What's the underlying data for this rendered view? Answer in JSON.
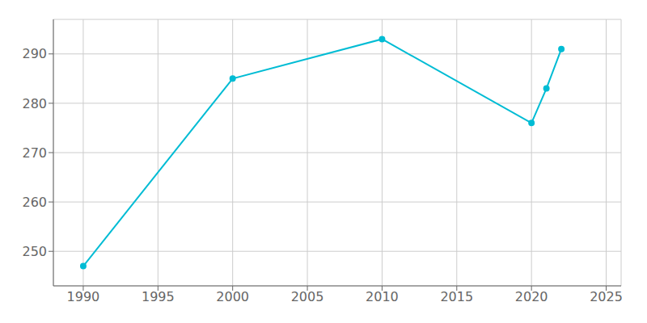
{
  "chart_data": {
    "type": "line",
    "x": [
      1990,
      2000,
      2010,
      2020,
      2021,
      2022
    ],
    "values": [
      247,
      285,
      293,
      276,
      283,
      291
    ],
    "color": "#00BCD4",
    "marker": "circle",
    "xlim": [
      1988,
      2026
    ],
    "ylim": [
      243,
      297
    ],
    "xticks": [
      1990,
      1995,
      2000,
      2005,
      2010,
      2015,
      2020,
      2025
    ],
    "yticks": [
      250,
      260,
      270,
      280,
      290
    ],
    "grid": true
  }
}
